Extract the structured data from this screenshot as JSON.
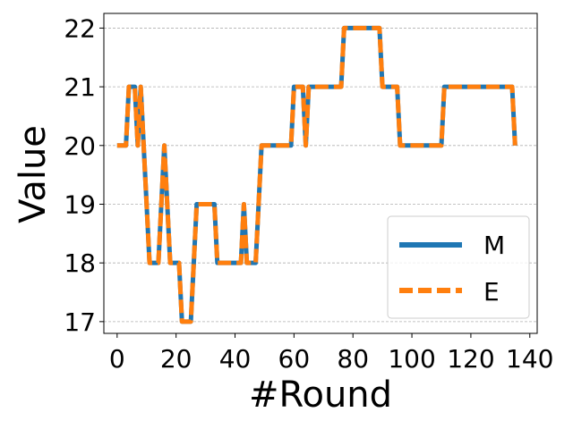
{
  "chart_data": {
    "type": "line",
    "xlabel": "#Round",
    "ylabel": "Value",
    "xlim": [
      -4.5,
      142.5
    ],
    "ylim": [
      16.8,
      22.25
    ],
    "xticks": [
      0,
      20,
      40,
      60,
      80,
      100,
      120,
      140
    ],
    "yticks": [
      17,
      18,
      19,
      20,
      21,
      22
    ],
    "grid": "y-dashed",
    "legend_position": "bottom-right",
    "x": [
      0,
      1,
      2,
      3,
      4,
      5,
      6,
      7,
      8,
      9,
      10,
      11,
      12,
      13,
      14,
      15,
      16,
      17,
      18,
      19,
      20,
      21,
      22,
      23,
      24,
      25,
      26,
      27,
      28,
      29,
      30,
      31,
      32,
      33,
      34,
      35,
      36,
      37,
      38,
      39,
      40,
      41,
      42,
      43,
      44,
      45,
      46,
      47,
      48,
      49,
      50,
      51,
      52,
      53,
      54,
      55,
      56,
      57,
      58,
      59,
      60,
      61,
      62,
      63,
      64,
      65,
      66,
      67,
      68,
      69,
      70,
      71,
      72,
      73,
      74,
      75,
      76,
      77,
      78,
      79,
      80,
      81,
      82,
      83,
      84,
      85,
      86,
      87,
      88,
      89,
      90,
      91,
      92,
      93,
      94,
      95,
      96,
      97,
      98,
      99,
      100,
      101,
      102,
      103,
      104,
      105,
      106,
      107,
      108,
      109,
      110,
      111,
      112,
      113,
      114,
      115,
      116,
      117,
      118,
      119,
      120,
      121,
      122,
      123,
      124,
      125,
      126,
      127,
      128,
      129,
      130,
      131,
      132,
      133,
      134,
      135
    ],
    "series": [
      {
        "name": "M",
        "color": "#1f77b4",
        "style": "solid",
        "values": [
          20,
          20,
          20,
          20,
          21,
          21,
          21,
          20,
          21,
          20,
          19,
          18,
          18,
          18,
          18,
          19,
          20,
          19,
          18,
          18,
          18,
          18,
          17,
          17,
          17,
          17,
          18,
          19,
          19,
          19,
          19,
          19,
          19,
          19,
          18,
          18,
          18,
          18,
          18,
          18,
          18,
          18,
          18,
          19,
          18,
          18,
          18,
          18,
          19,
          20,
          20,
          20,
          20,
          20,
          20,
          20,
          20,
          20,
          20,
          20,
          21,
          21,
          21,
          21,
          20,
          21,
          21,
          21,
          21,
          21,
          21,
          21,
          21,
          21,
          21,
          21,
          21,
          22,
          22,
          22,
          22,
          22,
          22,
          22,
          22,
          22,
          22,
          22,
          22,
          22,
          21,
          21,
          21,
          21,
          21,
          21,
          20,
          20,
          20,
          20,
          20,
          20,
          20,
          20,
          20,
          20,
          20,
          20,
          20,
          20,
          20,
          21,
          21,
          21,
          21,
          21,
          21,
          21,
          21,
          21,
          21,
          21,
          21,
          21,
          21,
          21,
          21,
          21,
          21,
          21,
          21,
          21,
          21,
          21,
          21,
          20
        ]
      },
      {
        "name": "E",
        "color": "#ff7f0e",
        "style": "dashed",
        "values": [
          20,
          20,
          20,
          20,
          21,
          21,
          21,
          20,
          21,
          20,
          19,
          18,
          18,
          18,
          18,
          19,
          20,
          19,
          18,
          18,
          18,
          18,
          17,
          17,
          17,
          17,
          18,
          19,
          19,
          19,
          19,
          19,
          19,
          19,
          18,
          18,
          18,
          18,
          18,
          18,
          18,
          18,
          18,
          19,
          18,
          18,
          18,
          18,
          19,
          20,
          20,
          20,
          20,
          20,
          20,
          20,
          20,
          20,
          20,
          20,
          21,
          21,
          21,
          21,
          20,
          21,
          21,
          21,
          21,
          21,
          21,
          21,
          21,
          21,
          21,
          21,
          21,
          22,
          22,
          22,
          22,
          22,
          22,
          22,
          22,
          22,
          22,
          22,
          22,
          22,
          21,
          21,
          21,
          21,
          21,
          21,
          20,
          20,
          20,
          20,
          20,
          20,
          20,
          20,
          20,
          20,
          20,
          20,
          20,
          20,
          20,
          21,
          21,
          21,
          21,
          21,
          21,
          21,
          21,
          21,
          21,
          21,
          21,
          21,
          21,
          21,
          21,
          21,
          21,
          21,
          21,
          21,
          21,
          21,
          21,
          20
        ]
      }
    ]
  }
}
